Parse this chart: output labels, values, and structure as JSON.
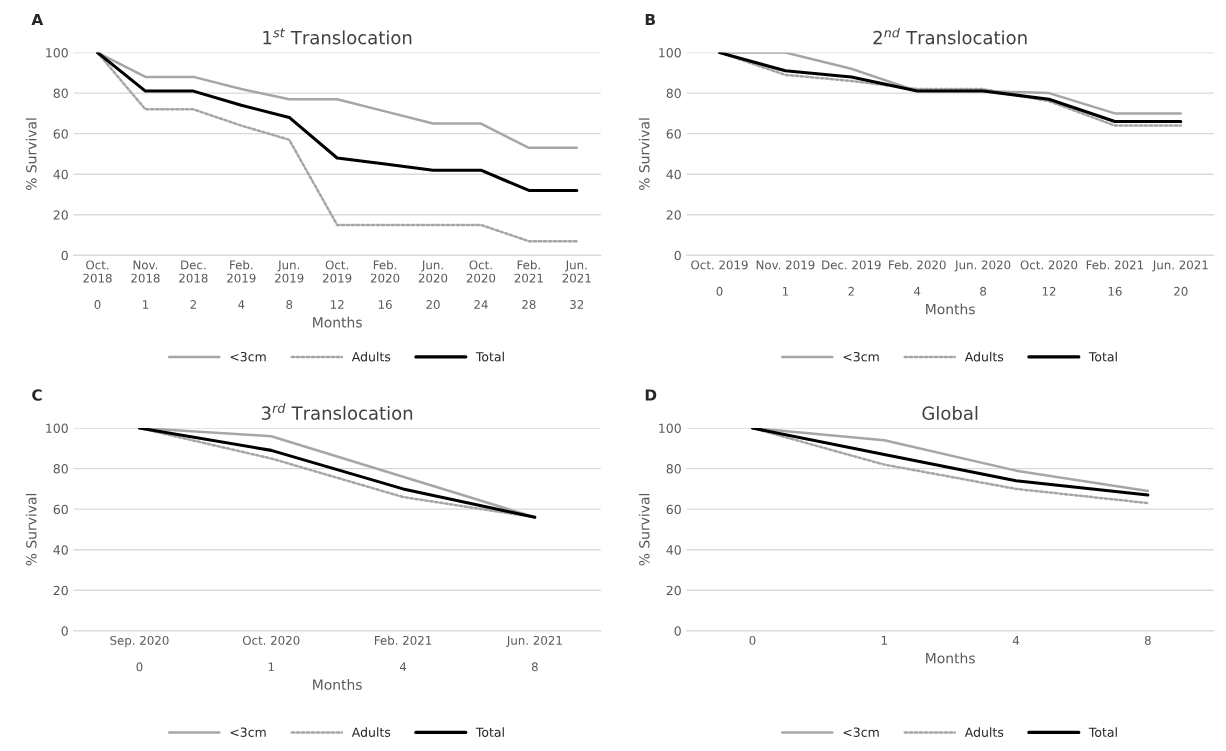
{
  "chart_data": [
    {
      "type": "line",
      "title": "1$^{st}$ Translocation",
      "annotations": [
        "A"
      ],
      "xlabel": "Months",
      "ylabel": "% Survival",
      "categories": [
        "Oct.\n2018\n\n0",
        "Nov.\n2018\n\n1",
        "Dec.\n2018\n\n2",
        "Feb.\n2019\n\n4",
        "Jun.\n2019\n\n8",
        "Oct.\n2019\n\n12",
        "Feb.\n2020\n\n16",
        "Jun.\n2020\n\n20",
        "Oct.\n2020\n\n24",
        "Feb.\n2021\n\n28",
        "Jun.\n2021\n\n32"
      ],
      "series": [
        {
          "name": "<3cm",
          "color": "#a6a6a6",
          "line_style": "solid",
          "values": [
            100,
            88,
            88,
            82,
            77,
            77,
            71,
            65,
            65,
            53,
            53
          ]
        },
        {
          "name": "Adults",
          "color": "#a6a6a6",
          "line_style": "dotted",
          "values": [
            100,
            72,
            72,
            64,
            57,
            15,
            15,
            15,
            15,
            7,
            7
          ]
        },
        {
          "name": "Total",
          "color": "#000000",
          "line_style": "solid",
          "values": [
            100,
            81,
            81,
            74,
            68,
            48,
            45,
            42,
            42,
            32,
            32
          ]
        }
      ],
      "ylim": [
        0,
        100
      ],
      "yticks": [
        0,
        20,
        40,
        60,
        80,
        100
      ],
      "grid": "y",
      "legend": "bottom",
      "marker": "none"
    },
    {
      "type": "line",
      "title": "2$^{nd}$ Translocation",
      "annotations": [
        "B"
      ],
      "xlabel": "Months",
      "ylabel": "% Survival",
      "categories": [
        "Oct. 2019\n\n0",
        "Nov. 2019\n\n1",
        "Dec. 2019\n\n2",
        "Feb. 2020\n\n4",
        "Jun. 2020\n\n8",
        "Oct. 2020\n\n12",
        "Feb. 2021\n\n16",
        "Jun. 2021\n\n20"
      ],
      "series": [
        {
          "name": "<3cm",
          "color": "#a6a6a6",
          "line_style": "solid",
          "values": [
            100,
            100,
            92,
            81,
            81,
            80,
            70,
            70
          ]
        },
        {
          "name": "Adults",
          "color": "#a6a6a6",
          "line_style": "dotted",
          "values": [
            100,
            89,
            86,
            82,
            82,
            76,
            64,
            64
          ]
        },
        {
          "name": "Total",
          "color": "#000000",
          "line_style": "solid",
          "values": [
            100,
            91,
            88,
            81,
            81,
            77,
            66,
            66
          ]
        }
      ],
      "ylim": [
        0,
        100
      ],
      "yticks": [
        0,
        20,
        40,
        60,
        80,
        100
      ],
      "grid": "y",
      "legend": "bottom",
      "marker": "none"
    },
    {
      "type": "line",
      "title": "3$^{rd}$ Translocation",
      "annotations": [
        "C"
      ],
      "xlabel": "Months",
      "ylabel": "% Survival",
      "categories": [
        "Sep. 2020\n\n0",
        "Oct. 2020\n\n1",
        "Feb. 2021\n\n4",
        "Jun. 2021\n\n8"
      ],
      "series": [
        {
          "name": "<3cm",
          "color": "#a6a6a6",
          "line_style": "solid",
          "values": [
            100,
            96,
            76,
            56
          ]
        },
        {
          "name": "Adults",
          "color": "#a6a6a6",
          "line_style": "dotted",
          "values": [
            100,
            85,
            66,
            56
          ]
        },
        {
          "name": "Total",
          "color": "#000000",
          "line_style": "solid",
          "values": [
            100,
            89,
            70,
            56
          ]
        }
      ],
      "ylim": [
        0,
        100
      ],
      "yticks": [
        0,
        20,
        40,
        60,
        80,
        100
      ],
      "grid": "y",
      "legend": "bottom",
      "marker": "none"
    },
    {
      "type": "line",
      "title": "Global",
      "annotations": [
        "D"
      ],
      "xlabel": "Months",
      "ylabel": "% Survival",
      "categories": [
        "0",
        "1",
        "4",
        "8"
      ],
      "series": [
        {
          "name": "<3cm",
          "color": "#a6a6a6",
          "line_style": "solid",
          "values": [
            100,
            94,
            79,
            69
          ]
        },
        {
          "name": "Adults",
          "color": "#a6a6a6",
          "line_style": "dotted",
          "values": [
            100,
            82,
            70,
            63
          ]
        },
        {
          "name": "Total",
          "color": "#000000",
          "line_style": "solid",
          "values": [
            100,
            87,
            74,
            67
          ]
        }
      ],
      "ylim": [
        0,
        100
      ],
      "yticks": [
        0,
        20,
        40,
        60,
        80,
        100
      ],
      "grid": "y",
      "legend": "bottom",
      "marker": "none"
    }
  ]
}
